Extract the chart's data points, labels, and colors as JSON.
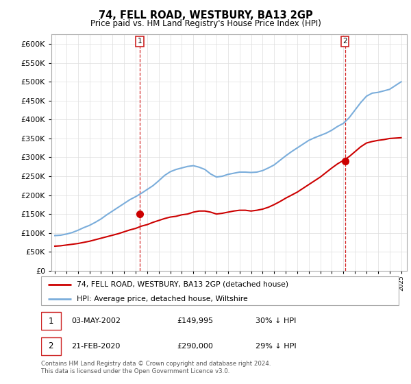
{
  "title": "74, FELL ROAD, WESTBURY, BA13 2GP",
  "subtitle": "Price paid vs. HM Land Registry's House Price Index (HPI)",
  "legend_line1": "74, FELL ROAD, WESTBURY, BA13 2GP (detached house)",
  "legend_line2": "HPI: Average price, detached house, Wiltshire",
  "sale1_date": "03-MAY-2002",
  "sale1_price": "£149,995",
  "sale1_hpi": "30% ↓ HPI",
  "sale2_date": "21-FEB-2020",
  "sale2_price": "£290,000",
  "sale2_hpi": "29% ↓ HPI",
  "footer": "Contains HM Land Registry data © Crown copyright and database right 2024.\nThis data is licensed under the Open Government Licence v3.0.",
  "sale1_year": 2002.35,
  "sale2_year": 2020.13,
  "sale1_value": 149995,
  "sale2_value": 290000,
  "red_color": "#cc0000",
  "blue_color": "#7aaddb",
  "dashed_color": "#cc0000",
  "ylim_min": 0,
  "ylim_max": 625000,
  "hpi_x": [
    1995.0,
    1995.5,
    1996.0,
    1996.5,
    1997.0,
    1997.5,
    1998.0,
    1998.5,
    1999.0,
    1999.5,
    2000.0,
    2000.5,
    2001.0,
    2001.5,
    2002.0,
    2002.5,
    2003.0,
    2003.5,
    2004.0,
    2004.5,
    2005.0,
    2005.5,
    2006.0,
    2006.5,
    2007.0,
    2007.5,
    2008.0,
    2008.5,
    2009.0,
    2009.5,
    2010.0,
    2010.5,
    2011.0,
    2011.5,
    2012.0,
    2012.5,
    2013.0,
    2013.5,
    2014.0,
    2014.5,
    2015.0,
    2015.5,
    2016.0,
    2016.5,
    2017.0,
    2017.5,
    2018.0,
    2018.5,
    2019.0,
    2019.5,
    2020.0,
    2020.5,
    2021.0,
    2021.5,
    2022.0,
    2022.5,
    2023.0,
    2023.5,
    2024.0,
    2024.5,
    2025.0
  ],
  "hpi_y": [
    93000,
    94000,
    97000,
    101000,
    107000,
    114000,
    120000,
    128000,
    137000,
    148000,
    158000,
    168000,
    178000,
    188000,
    196000,
    205000,
    215000,
    225000,
    238000,
    252000,
    262000,
    268000,
    272000,
    276000,
    278000,
    274000,
    268000,
    256000,
    248000,
    250000,
    255000,
    258000,
    261000,
    261000,
    260000,
    261000,
    265000,
    272000,
    280000,
    292000,
    304000,
    315000,
    325000,
    335000,
    345000,
    352000,
    358000,
    364000,
    372000,
    382000,
    390000,
    405000,
    425000,
    445000,
    462000,
    470000,
    472000,
    476000,
    480000,
    490000,
    500000
  ],
  "red_x": [
    1995.0,
    1995.5,
    1996.0,
    1996.5,
    1997.0,
    1997.5,
    1998.0,
    1998.5,
    1999.0,
    1999.5,
    2000.0,
    2000.5,
    2001.0,
    2001.5,
    2002.0,
    2002.5,
    2003.0,
    2003.5,
    2004.0,
    2004.5,
    2005.0,
    2005.5,
    2006.0,
    2006.5,
    2007.0,
    2007.5,
    2008.0,
    2008.5,
    2009.0,
    2009.5,
    2010.0,
    2010.5,
    2011.0,
    2011.5,
    2012.0,
    2012.5,
    2013.0,
    2013.5,
    2014.0,
    2014.5,
    2015.0,
    2015.5,
    2016.0,
    2016.5,
    2017.0,
    2017.5,
    2018.0,
    2018.5,
    2019.0,
    2019.5,
    2020.0,
    2020.5,
    2021.0,
    2021.5,
    2022.0,
    2022.5,
    2023.0,
    2023.5,
    2024.0,
    2024.5,
    2025.0
  ],
  "red_y": [
    65000,
    66000,
    68000,
    70000,
    72000,
    75000,
    78000,
    82000,
    86000,
    90000,
    94000,
    98000,
    103000,
    108000,
    112000,
    118000,
    122000,
    128000,
    133000,
    138000,
    142000,
    144000,
    148000,
    150000,
    155000,
    158000,
    158000,
    155000,
    150000,
    152000,
    155000,
    158000,
    160000,
    160000,
    158000,
    160000,
    163000,
    168000,
    175000,
    183000,
    192000,
    200000,
    208000,
    218000,
    228000,
    238000,
    248000,
    260000,
    272000,
    283000,
    292000,
    302000,
    315000,
    328000,
    338000,
    342000,
    345000,
    347000,
    350000,
    351000,
    352000
  ]
}
